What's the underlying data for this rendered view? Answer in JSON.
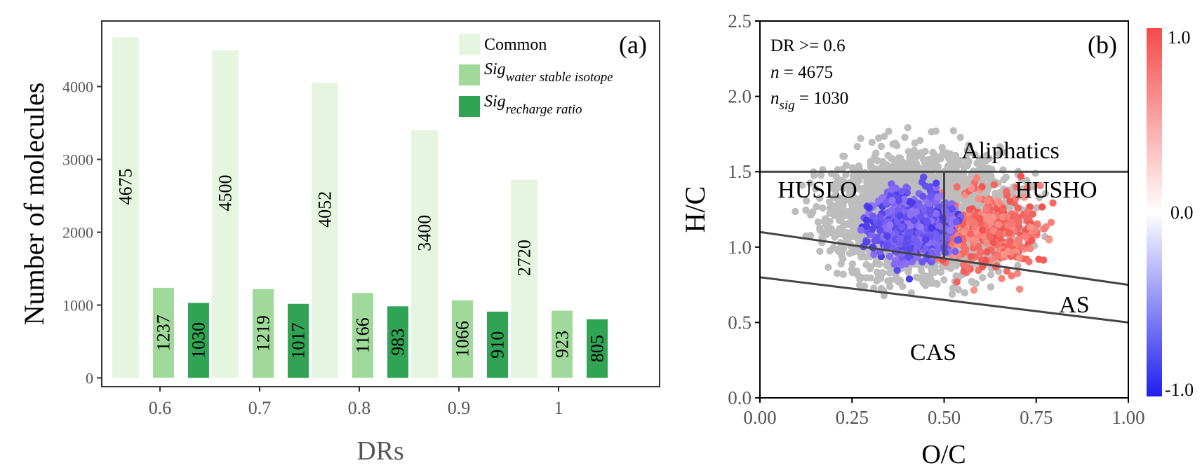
{
  "panel_a": {
    "panel_label": "(a)",
    "legend": [
      {
        "label": "Common",
        "sub": ""
      },
      {
        "label": "Sig",
        "sub": "water stable isotope"
      },
      {
        "label": "Sig",
        "sub": "recharge ratio"
      }
    ],
    "colors": {
      "common": "#e5f5e0",
      "water": "#a1d99b",
      "recharge": "#31a354"
    }
  },
  "panel_b": {
    "panel_label": "(b)",
    "annotation": {
      "line1": "DR >= 0.6",
      "line2_prefix": "n",
      "line2_value": " = 4675",
      "line3_prefix": "n",
      "line3_sub": "sig",
      "line3_value": " = 1030"
    },
    "regions": {
      "aliphatics": "Aliphatics",
      "huslo": "HUSLO",
      "husho": "HUSHO",
      "as": "AS",
      "cas": "CAS"
    },
    "colorbar": {
      "ticks": [
        "1.0",
        "0.0",
        "-1.0"
      ],
      "high": "#f44a4a",
      "mid": "#ffffff",
      "low": "#1f1fee"
    }
  },
  "chart_data": [
    {
      "type": "bar",
      "xlabel": "DRs",
      "ylabel": "Number of molecules",
      "categories": [
        "0.6",
        "0.7",
        "0.8",
        "0.9",
        "1"
      ],
      "series": [
        {
          "name": "Common",
          "values": [
            4675,
            4500,
            4052,
            3400,
            2720
          ]
        },
        {
          "name": "Sig water stable isotope",
          "values": [
            1237,
            1219,
            1166,
            1066,
            923
          ]
        },
        {
          "name": "Sig recharge ratio",
          "values": [
            1030,
            1017,
            983,
            910,
            805
          ]
        }
      ],
      "data_labels": [
        [
          "4675",
          "1237",
          "1030"
        ],
        [
          "4500",
          "1219",
          "1017"
        ],
        [
          "4052",
          "1166",
          "983"
        ],
        [
          "3400",
          "1066",
          "910"
        ],
        [
          "2720",
          "923",
          "805"
        ]
      ],
      "ylim": [
        -120,
        4900
      ],
      "yticks": [
        "0",
        "1000",
        "2000",
        "3000",
        "4000"
      ],
      "legend_position": "top-right",
      "grid": false
    },
    {
      "type": "scatter",
      "xlabel": "O/C",
      "ylabel": "H/C",
      "xlim": [
        0,
        1
      ],
      "ylim": [
        0,
        2.5
      ],
      "xticks": [
        "0.00",
        "0.25",
        "0.50",
        "0.75",
        "1.00"
      ],
      "yticks": [
        "0.0",
        "0.5",
        "1.0",
        "1.5",
        "2.0",
        "2.5"
      ],
      "color_scale": {
        "min": -1.0,
        "max": 1.0
      },
      "point_groups": [
        {
          "name": "gray",
          "n": 2600,
          "seed": 11,
          "cx": 0.44,
          "cy": 1.22,
          "sx": 0.12,
          "sy": 0.2,
          "rx": 0.35,
          "ry": 0.58
        },
        {
          "name": "positive",
          "n": 420,
          "seed": 23,
          "cx": 0.62,
          "cy": 1.1,
          "sx": 0.08,
          "sy": 0.13,
          "rx": 0.2,
          "ry": 0.45
        },
        {
          "name": "negative",
          "n": 650,
          "seed": 37,
          "cx": 0.41,
          "cy": 1.13,
          "sx": 0.06,
          "sy": 0.11,
          "rx": 0.14,
          "ry": 0.42
        }
      ],
      "region_lines": [
        {
          "x1": 0.0,
          "y1": 1.5,
          "x2": 1.0,
          "y2": 1.5
        },
        {
          "x1": 0.5,
          "y1": 1.5,
          "x2": 0.5,
          "y2": 0.93
        },
        {
          "x1": 0.0,
          "y1": 1.1,
          "x2": 1.0,
          "y2": 0.75
        },
        {
          "x1": 0.0,
          "y1": 0.8,
          "x2": 1.0,
          "y2": 0.5
        }
      ],
      "grid": false
    }
  ]
}
